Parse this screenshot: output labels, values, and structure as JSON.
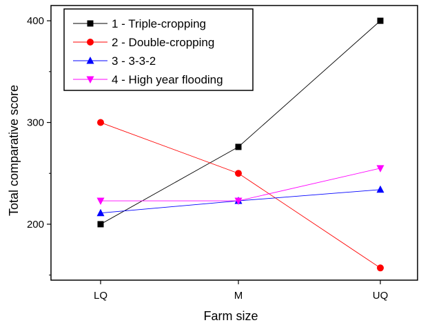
{
  "chart_data": {
    "type": "line",
    "categories": [
      "LQ",
      "M",
      "UQ"
    ],
    "xlabel": "Farm size",
    "ylabel": "Total comparative score",
    "ylim": [
      145,
      415
    ],
    "yticks": [
      200,
      300,
      400
    ],
    "grid": false,
    "legend_position": "top-left",
    "series": [
      {
        "name": "1 - Triple-cropping",
        "values": [
          200,
          276,
          400
        ],
        "color": "#000000",
        "marker": "square"
      },
      {
        "name": "2 - Double-cropping",
        "values": [
          300,
          250,
          157
        ],
        "color": "#ff0000",
        "marker": "circle"
      },
      {
        "name": "3 - 3-3-2",
        "values": [
          211,
          223,
          234
        ],
        "color": "#0000ff",
        "marker": "triangle-up"
      },
      {
        "name": "4 - High year flooding",
        "values": [
          223,
          223,
          255
        ],
        "color": "#ff00ff",
        "marker": "triangle-down"
      }
    ]
  }
}
